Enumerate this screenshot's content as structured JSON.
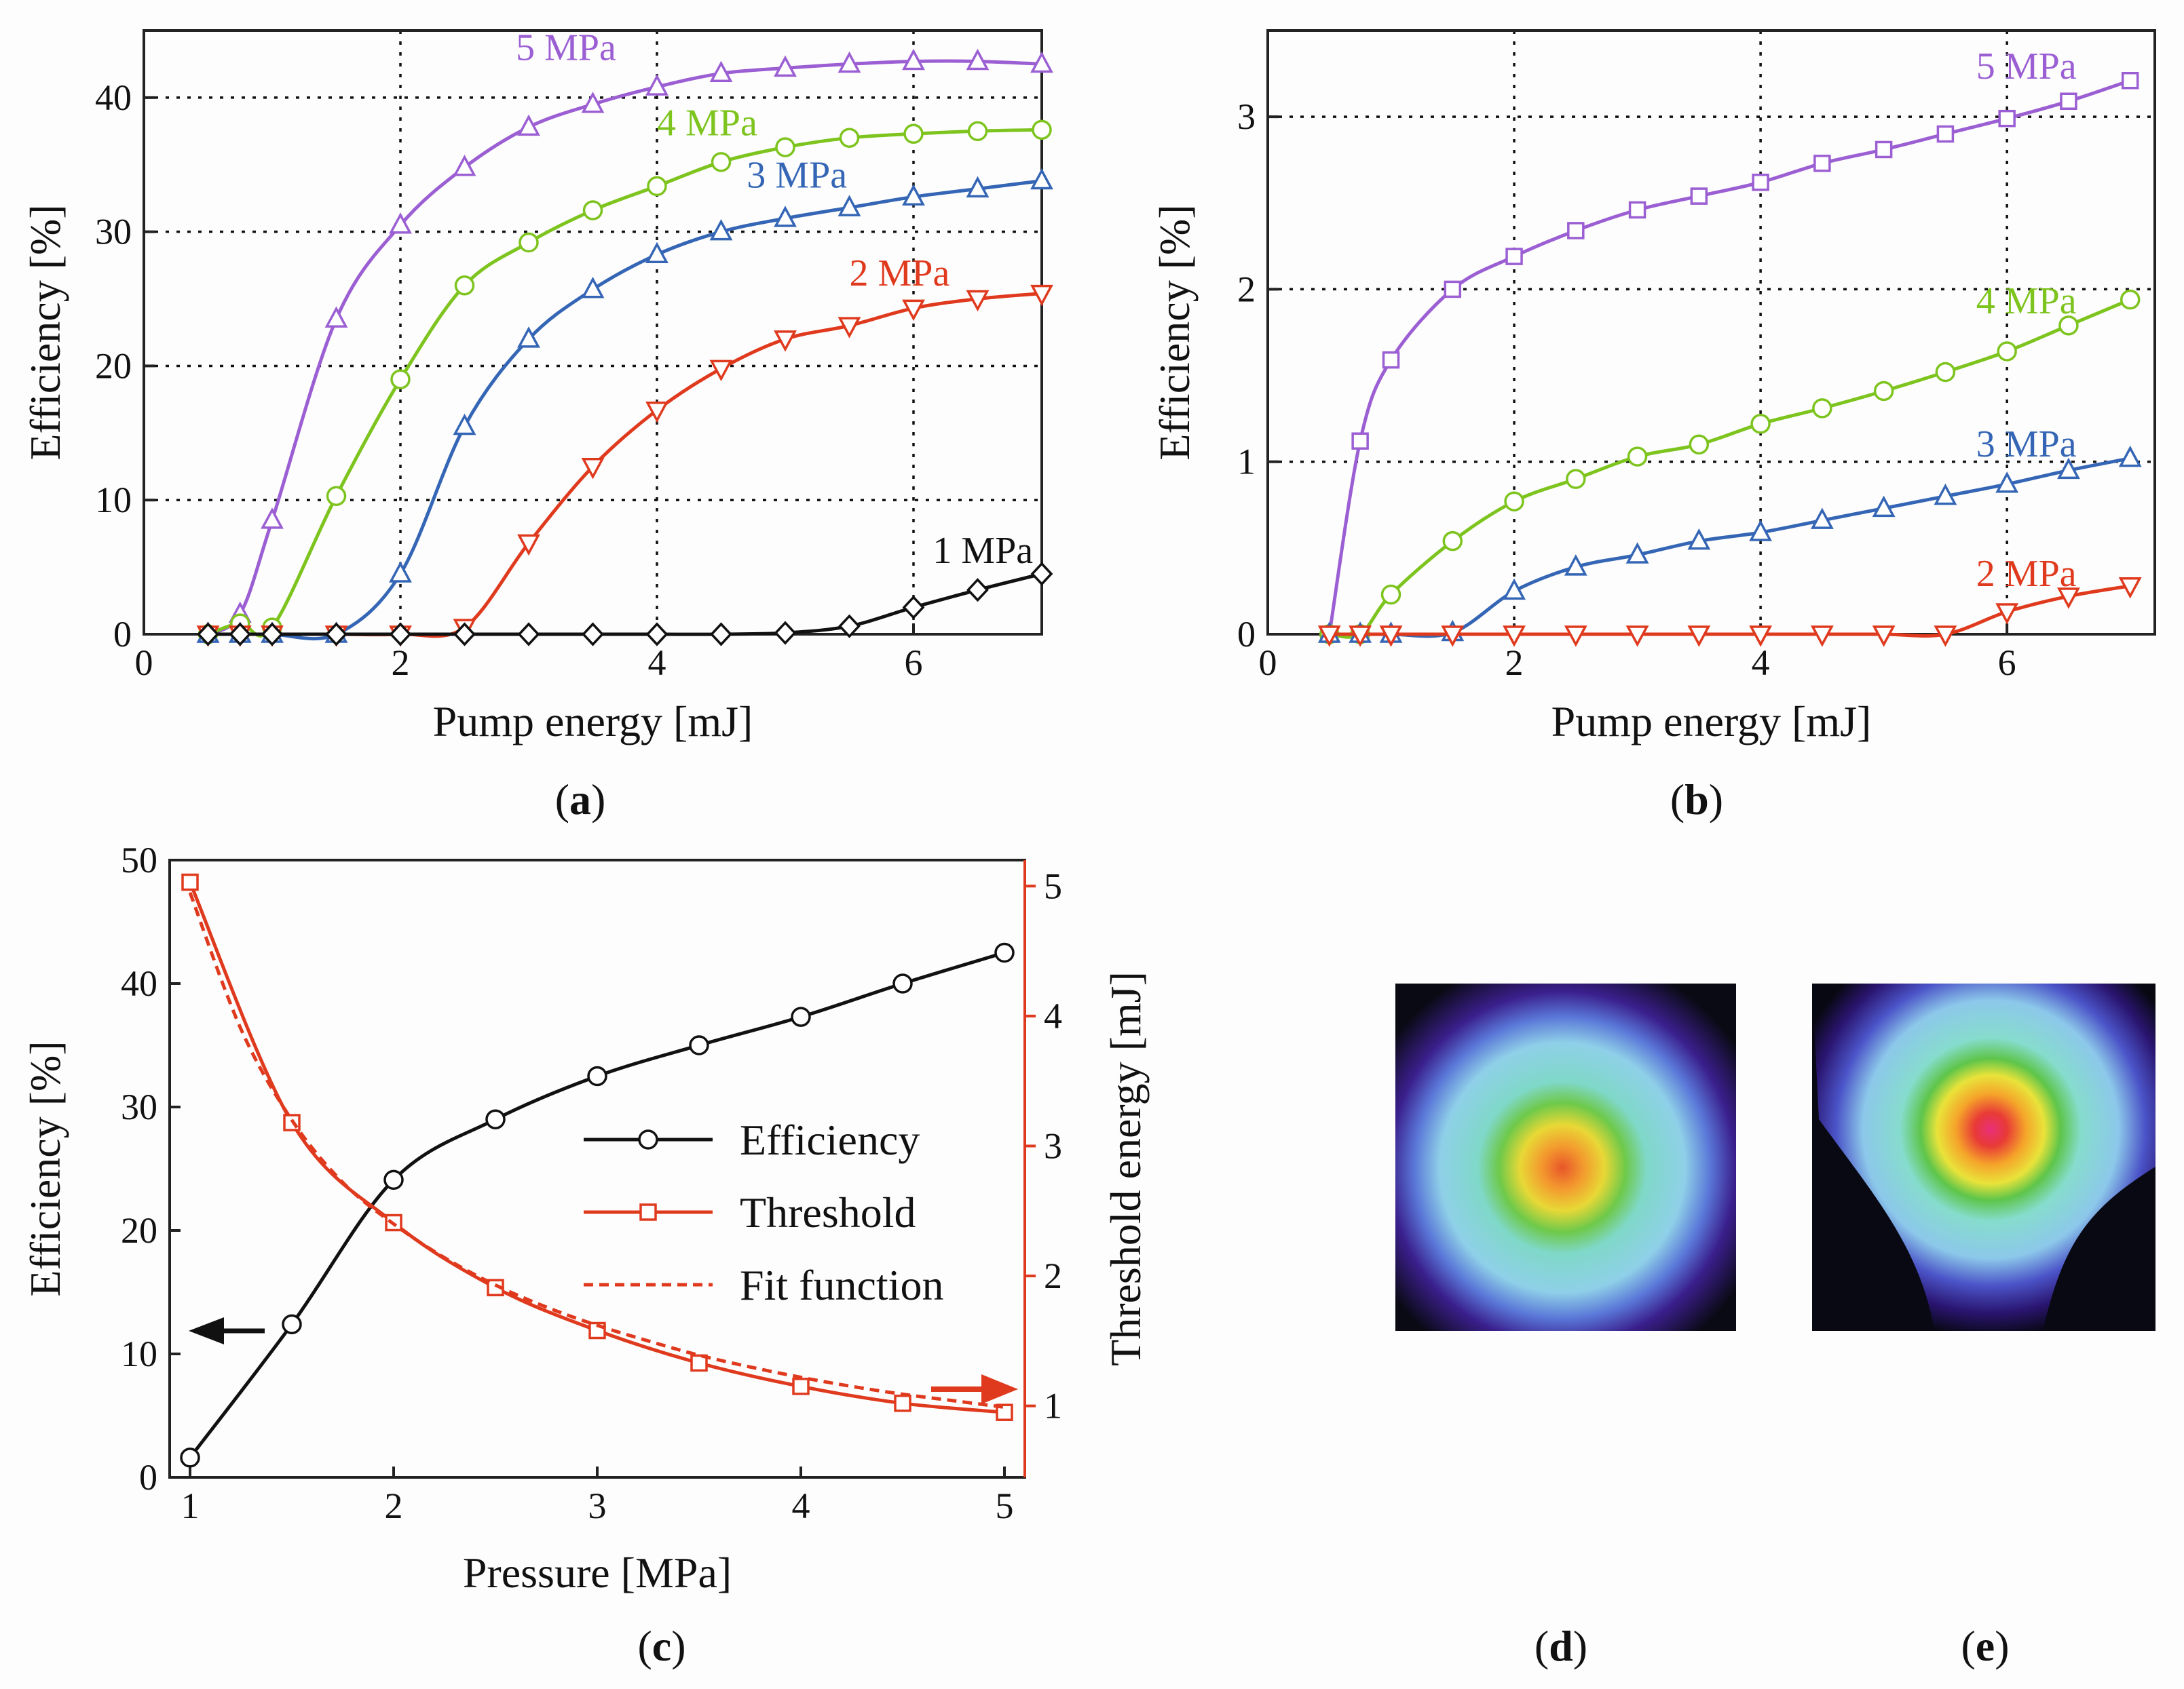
{
  "colors": {
    "mpa5": "#9b5fd3",
    "mpa4": "#7ec41f",
    "mpa3": "#3566b5",
    "mpa2": "#e03a1e",
    "mpa1": "#111111",
    "efficiency": "#111111",
    "threshold": "#e03a1e"
  },
  "chart_data": [
    {
      "id": "a",
      "panel_label": "a",
      "type": "line",
      "xlabel": "Pump energy [mJ]",
      "ylabel": "Efficiency [%]",
      "xlim": [
        0,
        7
      ],
      "ylim": [
        0,
        45
      ],
      "xticks": [
        0,
        2,
        4,
        6
      ],
      "yticks": [
        0,
        10,
        20,
        30,
        40
      ],
      "grid": true,
      "series": [
        {
          "name": "5 MPa",
          "color": "#9b5fd3",
          "marker": "triangle-up",
          "x": [
            0.5,
            0.75,
            1,
            1.5,
            2,
            2.5,
            3,
            3.5,
            4,
            4.5,
            5,
            5.5,
            6,
            6.5,
            7
          ],
          "y": [
            0,
            1.5,
            8.5,
            23.5,
            30.5,
            34.8,
            37.8,
            39.5,
            40.8,
            41.8,
            42.2,
            42.5,
            42.7,
            42.7,
            42.5
          ]
        },
        {
          "name": "4 MPa",
          "color": "#7ec41f",
          "marker": "circle",
          "x": [
            0.5,
            0.75,
            1,
            1.5,
            2,
            2.5,
            3,
            3.5,
            4,
            4.5,
            5,
            5.5,
            6,
            6.5,
            7
          ],
          "y": [
            0,
            0.8,
            0.5,
            10.3,
            19,
            26,
            29.2,
            31.6,
            33.4,
            35.2,
            36.3,
            37,
            37.3,
            37.5,
            37.6
          ]
        },
        {
          "name": "3 MPa",
          "color": "#3566b5",
          "marker": "triangle-up",
          "x": [
            0.5,
            0.75,
            1,
            1.5,
            2,
            2.5,
            3,
            3.5,
            4,
            4.5,
            5,
            5.5,
            6,
            6.5,
            7
          ],
          "y": [
            0,
            0,
            0,
            0,
            4.5,
            15.5,
            22,
            25.7,
            28.3,
            30,
            31,
            31.8,
            32.6,
            33.2,
            33.8
          ]
        },
        {
          "name": "2 MPa",
          "color": "#e03a1e",
          "marker": "triangle-down",
          "x": [
            0.5,
            0.75,
            1,
            1.5,
            2,
            2.5,
            3,
            3.5,
            4,
            4.5,
            5,
            5.5,
            6,
            6.5,
            7
          ],
          "y": [
            0,
            0,
            0,
            0,
            0,
            0.5,
            6.8,
            12.5,
            16.7,
            19.8,
            22,
            23,
            24.3,
            25,
            25.4
          ]
        },
        {
          "name": "1 MPa",
          "color": "#111111",
          "marker": "diamond",
          "x": [
            0.5,
            0.75,
            1,
            1.5,
            2,
            2.5,
            3,
            3.5,
            4,
            4.5,
            5,
            5.5,
            6,
            6.5,
            7
          ],
          "y": [
            0,
            0,
            0,
            0,
            0,
            0,
            0,
            0,
            0,
            0,
            0.1,
            0.6,
            2,
            3.3,
            4.5
          ]
        }
      ],
      "series_labels": [
        {
          "text": "5 MPa",
          "color": "#9b5fd3",
          "x": 2.9,
          "y": 42.8
        },
        {
          "text": "4 MPa",
          "color": "#7ec41f",
          "x": 4.0,
          "y": 37.2
        },
        {
          "text": "3 MPa",
          "color": "#3566b5",
          "x": 4.7,
          "y": 33.3
        },
        {
          "text": "2 MPa",
          "color": "#e03a1e",
          "x": 5.5,
          "y": 26.0
        },
        {
          "text": "1 MPa",
          "color": "#111111",
          "x": 6.15,
          "y": 5.3
        }
      ]
    },
    {
      "id": "b",
      "panel_label": "b",
      "type": "line",
      "xlabel": "Pump energy [mJ]",
      "ylabel": "Efficiency [%]",
      "xlim": [
        0,
        7.2
      ],
      "ylim": [
        0,
        3.5
      ],
      "xticks": [
        0,
        2,
        4,
        6
      ],
      "yticks": [
        0,
        1,
        2,
        3
      ],
      "grid": true,
      "series": [
        {
          "name": "5 MPa",
          "color": "#9b5fd3",
          "marker": "square",
          "x": [
            0.5,
            0.75,
            1,
            1.5,
            2,
            2.5,
            3,
            3.5,
            4,
            4.5,
            5,
            5.5,
            6,
            6.5,
            7
          ],
          "y": [
            0,
            1.12,
            1.59,
            2.0,
            2.19,
            2.34,
            2.46,
            2.54,
            2.62,
            2.73,
            2.81,
            2.9,
            2.99,
            3.09,
            3.21
          ]
        },
        {
          "name": "4 MPa",
          "color": "#7ec41f",
          "marker": "circle",
          "x": [
            0.5,
            0.75,
            1,
            1.5,
            2,
            2.5,
            3,
            3.5,
            4,
            4.5,
            5,
            5.5,
            6,
            6.5,
            7
          ],
          "y": [
            0,
            0,
            0.23,
            0.54,
            0.77,
            0.9,
            1.03,
            1.1,
            1.22,
            1.31,
            1.41,
            1.52,
            1.64,
            1.79,
            1.94
          ]
        },
        {
          "name": "3 MPa",
          "color": "#3566b5",
          "marker": "triangle-up",
          "x": [
            0.5,
            0.75,
            1,
            1.5,
            2,
            2.5,
            3,
            3.5,
            4,
            4.5,
            5,
            5.5,
            6,
            6.5,
            7
          ],
          "y": [
            0,
            0,
            0,
            0.01,
            0.25,
            0.39,
            0.46,
            0.54,
            0.59,
            0.66,
            0.73,
            0.8,
            0.87,
            0.95,
            1.02
          ]
        },
        {
          "name": "2 MPa",
          "color": "#e03a1e",
          "marker": "triangle-down",
          "x": [
            0.5,
            0.75,
            1,
            1.5,
            2,
            2.5,
            3,
            3.5,
            4,
            4.5,
            5,
            5.5,
            6,
            6.5,
            7
          ],
          "y": [
            0,
            0,
            0,
            0,
            0,
            0,
            0,
            0,
            0,
            0,
            0,
            0,
            0.13,
            0.22,
            0.28
          ]
        }
      ],
      "series_labels": [
        {
          "text": "5 MPa",
          "color": "#9b5fd3",
          "x": 5.75,
          "y": 3.22
        },
        {
          "text": "4 MPa",
          "color": "#7ec41f",
          "x": 5.75,
          "y": 1.86
        },
        {
          "text": "3 MPa",
          "color": "#3566b5",
          "x": 5.75,
          "y": 1.03
        },
        {
          "text": "2 MPa",
          "color": "#e03a1e",
          "x": 5.75,
          "y": 0.28
        }
      ]
    },
    {
      "id": "c",
      "panel_label": "c",
      "type": "line",
      "xlabel": "Pressure [MPa]",
      "ylabel": "Efficiency [%]",
      "y2label": "Threshold energy [mJ]",
      "xlim": [
        0.9,
        5.1
      ],
      "ylim": [
        0,
        50
      ],
      "y2lim": [
        0.45,
        5.2
      ],
      "xticks": [
        1,
        2,
        3,
        4,
        5
      ],
      "yticks": [
        0,
        10,
        20,
        30,
        40,
        50
      ],
      "y2ticks": [
        1,
        2,
        3,
        4,
        5
      ],
      "grid": false,
      "legend_position": "right",
      "series": [
        {
          "name": "Efficiency",
          "axis": "left",
          "color": "#111111",
          "marker": "circle",
          "line": "solid",
          "x": [
            1,
            1.5,
            2,
            2.5,
            3,
            3.5,
            4,
            4.5,
            5
          ],
          "y": [
            1.6,
            12.4,
            24.1,
            29,
            32.5,
            35,
            37.3,
            40,
            42.5
          ]
        },
        {
          "name": "Threshold",
          "axis": "right",
          "color": "#e03a1e",
          "marker": "square",
          "line": "solid",
          "x": [
            1,
            1.5,
            2,
            2.5,
            3,
            3.5,
            4,
            4.5,
            5
          ],
          "y": [
            5.03,
            3.18,
            2.41,
            1.91,
            1.58,
            1.33,
            1.15,
            1.02,
            0.95
          ]
        },
        {
          "name": "Fit function",
          "axis": "right",
          "color": "#e03a1e",
          "marker": "none",
          "line": "dashed",
          "x": [
            1,
            1.25,
            1.5,
            1.75,
            2,
            2.25,
            2.5,
            2.75,
            3,
            3.25,
            3.5,
            3.75,
            4,
            4.25,
            4.5,
            4.75,
            5
          ],
          "y": [
            4.95,
            3.9,
            3.2,
            2.72,
            2.4,
            2.14,
            1.93,
            1.76,
            1.62,
            1.5,
            1.39,
            1.3,
            1.22,
            1.15,
            1.09,
            1.04,
            0.99
          ]
        }
      ],
      "legend": [
        "Efficiency",
        "Threshold",
        "Fit function"
      ]
    }
  ],
  "images": [
    {
      "panel_label": "d"
    },
    {
      "panel_label": "e"
    }
  ]
}
